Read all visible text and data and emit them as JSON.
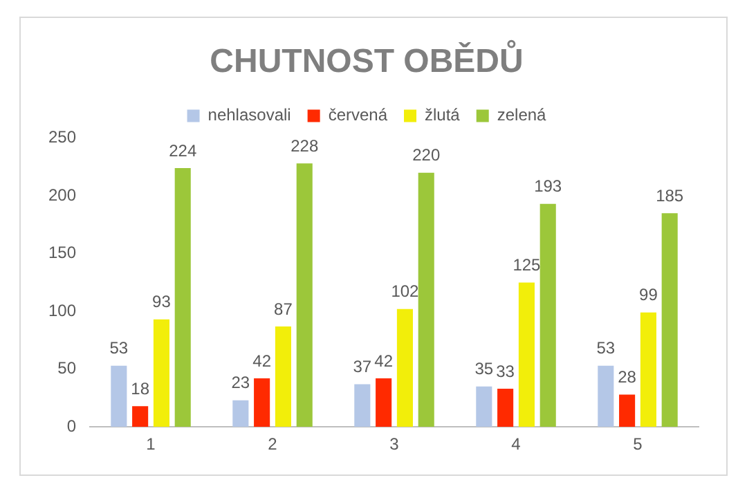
{
  "chart_data": {
    "type": "bar",
    "title": "CHUTNOST OBĚDŮ",
    "categories": [
      "1",
      "2",
      "3",
      "4",
      "5"
    ],
    "series": [
      {
        "name": "nehlasovali",
        "color": "#b4c7e7",
        "values": [
          53,
          23,
          37,
          35,
          53
        ]
      },
      {
        "name": "červená",
        "color": "#ff2a00",
        "values": [
          18,
          42,
          42,
          33,
          28
        ]
      },
      {
        "name": "žlutá",
        "color": "#f2ee0a",
        "values": [
          93,
          87,
          102,
          125,
          99
        ]
      },
      {
        "name": "zelená",
        "color": "#9cc73a",
        "values": [
          224,
          228,
          220,
          193,
          185
        ]
      }
    ],
    "ylim": [
      0,
      250
    ],
    "yticks": [
      0,
      50,
      100,
      150,
      200,
      250
    ],
    "grid": false,
    "legend": "top",
    "data_labels": true
  }
}
